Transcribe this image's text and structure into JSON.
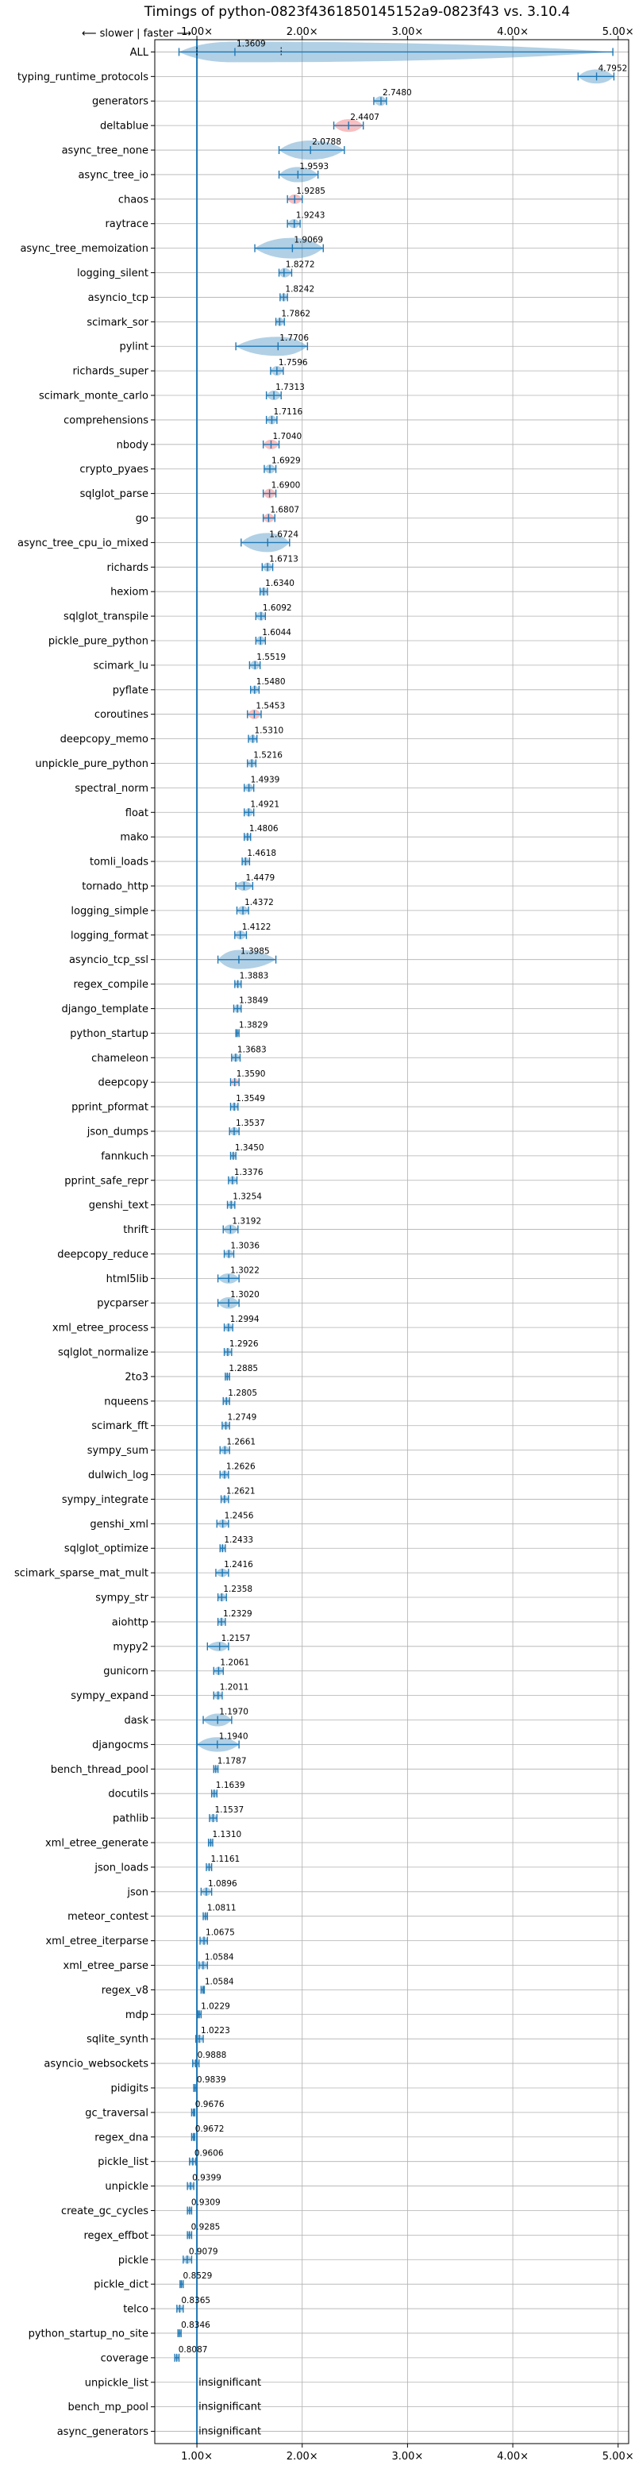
{
  "chart_data": {
    "type": "violin",
    "title": "Timings of python-0823f4361850145152a9-0823f43 vs. 3.10.4",
    "direction_note": "⟵ slower | faster ⟶",
    "xlabel": "",
    "ylabel": "",
    "xlim": [
      0.6,
      5.1
    ],
    "xticks": [
      1.0,
      2.0,
      3.0,
      4.0,
      5.0
    ],
    "xtick_labels": [
      "1.00×",
      "2.00×",
      "3.00×",
      "4.00×",
      "5.00×"
    ],
    "grid": true,
    "reference_line": 1.0,
    "colors": {
      "faster": "#1f77b4",
      "slower": "#e8474c",
      "reference": "#1f77b4"
    },
    "categories": [
      {
        "name": "ALL",
        "value": 1.3609,
        "label": "1.3609",
        "lo": 0.83,
        "hi": 4.95,
        "spread": 0.35
      },
      {
        "name": "typing_runtime_protocols",
        "value": 4.7952,
        "label": "4.7952",
        "lo": 4.62,
        "hi": 4.96,
        "spread": 0.12
      },
      {
        "name": "generators",
        "value": 2.748,
        "label": "2.7480",
        "lo": 2.68,
        "hi": 2.8,
        "spread": 0.05
      },
      {
        "name": "deltablue",
        "value": 2.4407,
        "label": "2.4407",
        "lo": 2.3,
        "hi": 2.58,
        "spread": 0.1,
        "slower": true
      },
      {
        "name": "async_tree_none",
        "value": 2.0788,
        "label": "2.0788",
        "lo": 1.78,
        "hi": 2.4,
        "spread": 0.2
      },
      {
        "name": "async_tree_io",
        "value": 1.9593,
        "label": "1.9593",
        "lo": 1.78,
        "hi": 2.15,
        "spread": 0.14
      },
      {
        "name": "chaos",
        "value": 1.9285,
        "label": "1.9285",
        "lo": 1.86,
        "hi": 2.0,
        "spread": 0.05,
        "slower": true
      },
      {
        "name": "raytrace",
        "value": 1.9243,
        "label": "1.9243",
        "lo": 1.86,
        "hi": 1.98,
        "spread": 0.04
      },
      {
        "name": "async_tree_memoization",
        "value": 1.9069,
        "label": "1.9069",
        "lo": 1.55,
        "hi": 2.2,
        "spread": 0.25
      },
      {
        "name": "logging_silent",
        "value": 1.8272,
        "label": "1.8272",
        "lo": 1.78,
        "hi": 1.9,
        "spread": 0.05
      },
      {
        "name": "asyncio_tcp",
        "value": 1.8242,
        "label": "1.8242",
        "lo": 1.79,
        "hi": 1.86,
        "spread": 0.03
      },
      {
        "name": "scimark_sor",
        "value": 1.7862,
        "label": "1.7862",
        "lo": 1.75,
        "hi": 1.83,
        "spread": 0.03
      },
      {
        "name": "pylint",
        "value": 1.7706,
        "label": "1.7706",
        "lo": 1.37,
        "hi": 2.05,
        "spread": 0.2
      },
      {
        "name": "richards_super",
        "value": 1.7596,
        "label": "1.7596",
        "lo": 1.7,
        "hi": 1.82,
        "spread": 0.05
      },
      {
        "name": "scimark_monte_carlo",
        "value": 1.7313,
        "label": "1.7313",
        "lo": 1.66,
        "hi": 1.8,
        "spread": 0.05
      },
      {
        "name": "comprehensions",
        "value": 1.7116,
        "label": "1.7116",
        "lo": 1.66,
        "hi": 1.76,
        "spread": 0.04
      },
      {
        "name": "nbody",
        "value": 1.704,
        "label": "1.7040",
        "lo": 1.63,
        "hi": 1.78,
        "spread": 0.05,
        "slower": true
      },
      {
        "name": "crypto_pyaes",
        "value": 1.6929,
        "label": "1.6929",
        "lo": 1.64,
        "hi": 1.75,
        "spread": 0.04
      },
      {
        "name": "sqlglot_parse",
        "value": 1.69,
        "label": "1.6900",
        "lo": 1.63,
        "hi": 1.75,
        "spread": 0.05,
        "slower": true
      },
      {
        "name": "go",
        "value": 1.6807,
        "label": "1.6807",
        "lo": 1.63,
        "hi": 1.74,
        "spread": 0.04,
        "slower": true
      },
      {
        "name": "async_tree_cpu_io_mixed",
        "value": 1.6724,
        "label": "1.6724",
        "lo": 1.42,
        "hi": 1.88,
        "spread": 0.2
      },
      {
        "name": "richards",
        "value": 1.6713,
        "label": "1.6713",
        "lo": 1.62,
        "hi": 1.72,
        "spread": 0.04
      },
      {
        "name": "hexiom",
        "value": 1.634,
        "label": "1.6340",
        "lo": 1.6,
        "hi": 1.67,
        "spread": 0.03
      },
      {
        "name": "sqlglot_transpile",
        "value": 1.6092,
        "label": "1.6092",
        "lo": 1.56,
        "hi": 1.65,
        "spread": 0.04
      },
      {
        "name": "pickle_pure_python",
        "value": 1.6044,
        "label": "1.6044",
        "lo": 1.56,
        "hi": 1.65,
        "spread": 0.04
      },
      {
        "name": "scimark_lu",
        "value": 1.5519,
        "label": "1.5519",
        "lo": 1.5,
        "hi": 1.6,
        "spread": 0.04
      },
      {
        "name": "pyflate",
        "value": 1.548,
        "label": "1.5480",
        "lo": 1.51,
        "hi": 1.59,
        "spread": 0.03
      },
      {
        "name": "coroutines",
        "value": 1.5453,
        "label": "1.5453",
        "lo": 1.48,
        "hi": 1.61,
        "spread": 0.05,
        "slower": true
      },
      {
        "name": "deepcopy_memo",
        "value": 1.531,
        "label": "1.5310",
        "lo": 1.49,
        "hi": 1.57,
        "spread": 0.03
      },
      {
        "name": "unpickle_pure_python",
        "value": 1.5216,
        "label": "1.5216",
        "lo": 1.48,
        "hi": 1.56,
        "spread": 0.03
      },
      {
        "name": "spectral_norm",
        "value": 1.4939,
        "label": "1.4939",
        "lo": 1.45,
        "hi": 1.54,
        "spread": 0.03
      },
      {
        "name": "float",
        "value": 1.4921,
        "label": "1.4921",
        "lo": 1.45,
        "hi": 1.54,
        "spread": 0.03
      },
      {
        "name": "mako",
        "value": 1.4806,
        "label": "1.4806",
        "lo": 1.45,
        "hi": 1.51,
        "spread": 0.02
      },
      {
        "name": "tomli_loads",
        "value": 1.4618,
        "label": "1.4618",
        "lo": 1.43,
        "hi": 1.5,
        "spread": 0.03
      },
      {
        "name": "tornado_http",
        "value": 1.4479,
        "label": "1.4479",
        "lo": 1.37,
        "hi": 1.53,
        "spread": 0.05
      },
      {
        "name": "logging_simple",
        "value": 1.4372,
        "label": "1.4372",
        "lo": 1.38,
        "hi": 1.49,
        "spread": 0.04
      },
      {
        "name": "logging_format",
        "value": 1.4122,
        "label": "1.4122",
        "lo": 1.36,
        "hi": 1.47,
        "spread": 0.04
      },
      {
        "name": "asyncio_tcp_ssl",
        "value": 1.3985,
        "label": "1.3985",
        "lo": 1.2,
        "hi": 1.75,
        "spread": 0.2
      },
      {
        "name": "regex_compile",
        "value": 1.3883,
        "label": "1.3883",
        "lo": 1.36,
        "hi": 1.42,
        "spread": 0.02
      },
      {
        "name": "django_template",
        "value": 1.3849,
        "label": "1.3849",
        "lo": 1.35,
        "hi": 1.42,
        "spread": 0.03
      },
      {
        "name": "python_startup",
        "value": 1.3829,
        "label": "1.3829",
        "lo": 1.37,
        "hi": 1.4,
        "spread": 0.01
      },
      {
        "name": "chameleon",
        "value": 1.3683,
        "label": "1.3683",
        "lo": 1.33,
        "hi": 1.41,
        "spread": 0.03
      },
      {
        "name": "deepcopy",
        "value": 1.359,
        "label": "1.3590",
        "lo": 1.32,
        "hi": 1.4,
        "spread": 0.03,
        "slower": true
      },
      {
        "name": "pprint_pformat",
        "value": 1.3549,
        "label": "1.3549",
        "lo": 1.32,
        "hi": 1.39,
        "spread": 0.03
      },
      {
        "name": "json_dumps",
        "value": 1.3537,
        "label": "1.3537",
        "lo": 1.31,
        "hi": 1.4,
        "spread": 0.03
      },
      {
        "name": "fannkuch",
        "value": 1.345,
        "label": "1.3450",
        "lo": 1.32,
        "hi": 1.37,
        "spread": 0.02
      },
      {
        "name": "pprint_safe_repr",
        "value": 1.3376,
        "label": "1.3376",
        "lo": 1.3,
        "hi": 1.38,
        "spread": 0.03
      },
      {
        "name": "genshi_text",
        "value": 1.3254,
        "label": "1.3254",
        "lo": 1.29,
        "hi": 1.36,
        "spread": 0.03
      },
      {
        "name": "thrift",
        "value": 1.3192,
        "label": "1.3192",
        "lo": 1.25,
        "hi": 1.39,
        "spread": 0.05
      },
      {
        "name": "deepcopy_reduce",
        "value": 1.3036,
        "label": "1.3036",
        "lo": 1.26,
        "hi": 1.35,
        "spread": 0.03
      },
      {
        "name": "html5lib",
        "value": 1.3022,
        "label": "1.3022",
        "lo": 1.2,
        "hi": 1.4,
        "spread": 0.06
      },
      {
        "name": "pycparser",
        "value": 1.302,
        "label": "1.3020",
        "lo": 1.2,
        "hi": 1.4,
        "spread": 0.08
      },
      {
        "name": "xml_etree_process",
        "value": 1.2994,
        "label": "1.2994",
        "lo": 1.26,
        "hi": 1.34,
        "spread": 0.03
      },
      {
        "name": "sqlglot_normalize",
        "value": 1.2926,
        "label": "1.2926",
        "lo": 1.26,
        "hi": 1.33,
        "spread": 0.03
      },
      {
        "name": "2to3",
        "value": 1.2885,
        "label": "1.2885",
        "lo": 1.27,
        "hi": 1.31,
        "spread": 0.015
      },
      {
        "name": "nqueens",
        "value": 1.2805,
        "label": "1.2805",
        "lo": 1.25,
        "hi": 1.31,
        "spread": 0.02
      },
      {
        "name": "scimark_fft",
        "value": 1.2749,
        "label": "1.2749",
        "lo": 1.24,
        "hi": 1.31,
        "spread": 0.02
      },
      {
        "name": "sympy_sum",
        "value": 1.2661,
        "label": "1.2661",
        "lo": 1.22,
        "hi": 1.31,
        "spread": 0.03
      },
      {
        "name": "dulwich_log",
        "value": 1.2626,
        "label": "1.2626",
        "lo": 1.22,
        "hi": 1.3,
        "spread": 0.03
      },
      {
        "name": "sympy_integrate",
        "value": 1.2621,
        "label": "1.2621",
        "lo": 1.23,
        "hi": 1.3,
        "spread": 0.02
      },
      {
        "name": "genshi_xml",
        "value": 1.2456,
        "label": "1.2456",
        "lo": 1.19,
        "hi": 1.3,
        "spread": 0.03
      },
      {
        "name": "sqlglot_optimize",
        "value": 1.2433,
        "label": "1.2433",
        "lo": 1.22,
        "hi": 1.27,
        "spread": 0.02
      },
      {
        "name": "scimark_sparse_mat_mult",
        "value": 1.2416,
        "label": "1.2416",
        "lo": 1.18,
        "hi": 1.3,
        "spread": 0.03
      },
      {
        "name": "sympy_str",
        "value": 1.2358,
        "label": "1.2358",
        "lo": 1.2,
        "hi": 1.28,
        "spread": 0.03
      },
      {
        "name": "aiohttp",
        "value": 1.2329,
        "label": "1.2329",
        "lo": 1.2,
        "hi": 1.27,
        "spread": 0.03
      },
      {
        "name": "mypy2",
        "value": 1.2157,
        "label": "1.2157",
        "lo": 1.1,
        "hi": 1.3,
        "spread": 0.05
      },
      {
        "name": "gunicorn",
        "value": 1.2061,
        "label": "1.2061",
        "lo": 1.16,
        "hi": 1.25,
        "spread": 0.03
      },
      {
        "name": "sympy_expand",
        "value": 1.2011,
        "label": "1.2011",
        "lo": 1.16,
        "hi": 1.24,
        "spread": 0.03
      },
      {
        "name": "dask",
        "value": 1.197,
        "label": "1.1970",
        "lo": 1.06,
        "hi": 1.33,
        "spread": 0.1
      },
      {
        "name": "djangocms",
        "value": 1.194,
        "label": "1.1940",
        "lo": 1.0,
        "hi": 1.4,
        "spread": 0.13
      },
      {
        "name": "bench_thread_pool",
        "value": 1.1787,
        "label": "1.1787",
        "lo": 1.16,
        "hi": 1.2,
        "spread": 0.015
      },
      {
        "name": "docutils",
        "value": 1.1639,
        "label": "1.1639",
        "lo": 1.14,
        "hi": 1.19,
        "spread": 0.02
      },
      {
        "name": "pathlib",
        "value": 1.1537,
        "label": "1.1537",
        "lo": 1.12,
        "hi": 1.19,
        "spread": 0.03
      },
      {
        "name": "xml_etree_generate",
        "value": 1.131,
        "label": "1.1310",
        "lo": 1.11,
        "hi": 1.15,
        "spread": 0.015
      },
      {
        "name": "json_loads",
        "value": 1.1161,
        "label": "1.1161",
        "lo": 1.09,
        "hi": 1.14,
        "spread": 0.02
      },
      {
        "name": "json",
        "value": 1.0896,
        "label": "1.0896",
        "lo": 1.04,
        "hi": 1.14,
        "spread": 0.03
      },
      {
        "name": "meteor_contest",
        "value": 1.0811,
        "label": "1.0811",
        "lo": 1.06,
        "hi": 1.1,
        "spread": 0.015
      },
      {
        "name": "xml_etree_iterparse",
        "value": 1.0675,
        "label": "1.0675",
        "lo": 1.03,
        "hi": 1.1,
        "spread": 0.03
      },
      {
        "name": "xml_etree_parse",
        "value": 1.0584,
        "label": "1.0584",
        "lo": 1.02,
        "hi": 1.1,
        "spread": 0.03
      },
      {
        "name": "regex_v8",
        "value": 1.0584,
        "label": "1.0584",
        "lo": 1.04,
        "hi": 1.07,
        "spread": 0.01
      },
      {
        "name": "mdp",
        "value": 1.0229,
        "label": "1.0229",
        "lo": 1.01,
        "hi": 1.04,
        "spread": 0.01
      },
      {
        "name": "sqlite_synth",
        "value": 1.0223,
        "label": "1.0223",
        "lo": 0.99,
        "hi": 1.06,
        "spread": 0.03
      },
      {
        "name": "asyncio_websockets",
        "value": 0.9888,
        "label": "0.9888",
        "lo": 0.96,
        "hi": 1.02,
        "spread": 0.02
      },
      {
        "name": "pidigits",
        "value": 0.9839,
        "label": "0.9839",
        "lo": 0.97,
        "hi": 1.0,
        "spread": 0.008
      },
      {
        "name": "gc_traversal",
        "value": 0.9676,
        "label": "0.9676",
        "lo": 0.95,
        "hi": 0.98,
        "spread": 0.01
      },
      {
        "name": "regex_dna",
        "value": 0.9672,
        "label": "0.9672",
        "lo": 0.95,
        "hi": 0.98,
        "spread": 0.01
      },
      {
        "name": "pickle_list",
        "value": 0.9606,
        "label": "0.9606",
        "lo": 0.93,
        "hi": 0.99,
        "spread": 0.02
      },
      {
        "name": "unpickle",
        "value": 0.9399,
        "label": "0.9399",
        "lo": 0.91,
        "hi": 0.97,
        "spread": 0.02
      },
      {
        "name": "create_gc_cycles",
        "value": 0.9309,
        "label": "0.9309",
        "lo": 0.91,
        "hi": 0.95,
        "spread": 0.015
      },
      {
        "name": "regex_effbot",
        "value": 0.9285,
        "label": "0.9285",
        "lo": 0.91,
        "hi": 0.95,
        "spread": 0.015
      },
      {
        "name": "pickle",
        "value": 0.9079,
        "label": "0.9079",
        "lo": 0.87,
        "hi": 0.95,
        "spread": 0.03
      },
      {
        "name": "pickle_dict",
        "value": 0.8529,
        "label": "0.8529",
        "lo": 0.84,
        "hi": 0.87,
        "spread": 0.01
      },
      {
        "name": "telco",
        "value": 0.8365,
        "label": "0.8365",
        "lo": 0.81,
        "hi": 0.87,
        "spread": 0.02
      },
      {
        "name": "python_startup_no_site",
        "value": 0.8346,
        "label": "0.8346",
        "lo": 0.82,
        "hi": 0.85,
        "spread": 0.008
      },
      {
        "name": "coverage",
        "value": 0.8087,
        "label": "0.8087",
        "lo": 0.79,
        "hi": 0.83,
        "spread": 0.01
      },
      {
        "name": "unpickle_list",
        "value": 1.0,
        "label": "insignificant",
        "insignificant": true
      },
      {
        "name": "bench_mp_pool",
        "value": 1.0,
        "label": "insignificant",
        "insignificant": true
      },
      {
        "name": "async_generators",
        "value": 1.0,
        "label": "insignificant",
        "insignificant": true
      }
    ]
  }
}
